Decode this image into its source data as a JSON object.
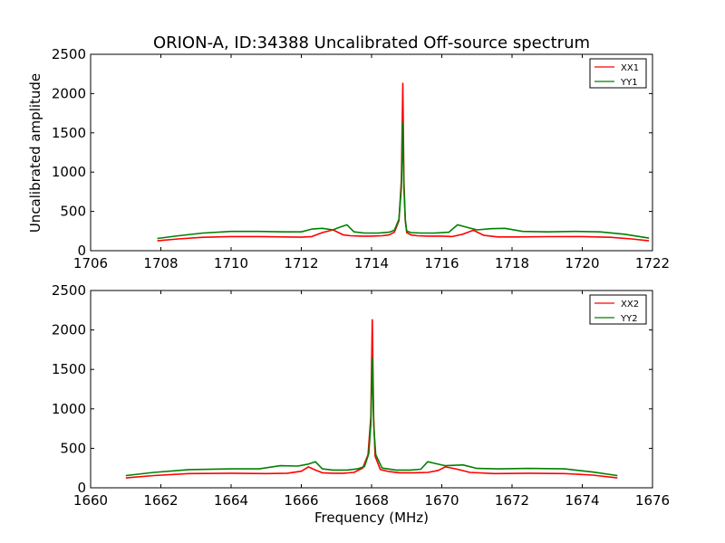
{
  "chart_data": [
    {
      "type": "line",
      "title": "ORION-A, ID:34388 Uncalibrated Off-source spectrum",
      "xlabel": "",
      "ylabel": "Uncalibrated amplitude",
      "xlim": [
        1706,
        1722
      ],
      "ylim": [
        0,
        2500
      ],
      "xticks": [
        "1706",
        "1708",
        "1710",
        "1712",
        "1714",
        "1716",
        "1718",
        "1720",
        "1722"
      ],
      "yticks": [
        "0",
        "500",
        "1000",
        "1500",
        "2000",
        "2500"
      ],
      "grid": false,
      "legend_position": "top-right",
      "series": [
        {
          "name": "XX1",
          "color": "#ff0000",
          "x": [
            1707.9,
            1708.5,
            1709.2,
            1710.0,
            1710.8,
            1711.5,
            1712.0,
            1712.3,
            1712.6,
            1712.9,
            1713.2,
            1713.4,
            1713.7,
            1714.0,
            1714.3,
            1714.5,
            1714.65,
            1714.78,
            1714.85,
            1714.89,
            1714.92,
            1714.96,
            1715.0,
            1715.12,
            1715.3,
            1715.6,
            1716.0,
            1716.3,
            1716.6,
            1716.9,
            1717.2,
            1717.6,
            1718.2,
            1719.0,
            1720.0,
            1720.8,
            1721.4,
            1721.9
          ],
          "y": [
            125,
            150,
            170,
            180,
            180,
            175,
            172,
            180,
            230,
            265,
            200,
            190,
            185,
            185,
            190,
            200,
            235,
            380,
            900,
            2130,
            900,
            380,
            230,
            200,
            190,
            185,
            185,
            180,
            210,
            260,
            195,
            175,
            175,
            178,
            180,
            170,
            150,
            125
          ]
        },
        {
          "name": "YY1",
          "color": "#008000",
          "x": [
            1707.9,
            1708.5,
            1709.2,
            1710.0,
            1710.8,
            1711.5,
            1712.0,
            1712.3,
            1712.6,
            1712.9,
            1713.1,
            1713.3,
            1713.5,
            1713.8,
            1714.2,
            1714.5,
            1714.65,
            1714.78,
            1714.85,
            1714.89,
            1714.92,
            1714.96,
            1715.0,
            1715.12,
            1715.4,
            1715.8,
            1716.2,
            1716.45,
            1716.7,
            1717.0,
            1717.4,
            1717.8,
            1718.3,
            1719.0,
            1719.8,
            1720.5,
            1721.2,
            1721.9
          ],
          "y": [
            155,
            190,
            225,
            245,
            245,
            240,
            240,
            275,
            285,
            265,
            300,
            330,
            240,
            225,
            225,
            235,
            260,
            400,
            800,
            1630,
            800,
            400,
            250,
            230,
            225,
            225,
            235,
            330,
            300,
            265,
            280,
            285,
            245,
            240,
            245,
            240,
            210,
            160
          ]
        }
      ]
    },
    {
      "type": "line",
      "title": "",
      "xlabel": "Frequency (MHz)",
      "ylabel": "",
      "xlim": [
        1660,
        1676
      ],
      "ylim": [
        0,
        2500
      ],
      "xticks": [
        "1660",
        "1662",
        "1664",
        "1666",
        "1668",
        "1670",
        "1672",
        "1674",
        "1676"
      ],
      "yticks": [
        "0",
        "500",
        "1000",
        "1500",
        "2000",
        "2500"
      ],
      "grid": false,
      "legend_position": "top-right",
      "series": [
        {
          "name": "XX2",
          "color": "#ff0000",
          "x": [
            1661.0,
            1661.8,
            1662.8,
            1664.0,
            1665.0,
            1665.6,
            1666.0,
            1666.2,
            1666.4,
            1666.6,
            1666.9,
            1667.2,
            1667.5,
            1667.75,
            1667.9,
            1667.98,
            1668.02,
            1668.06,
            1668.1,
            1668.25,
            1668.5,
            1668.8,
            1669.2,
            1669.6,
            1669.9,
            1670.1,
            1670.4,
            1670.8,
            1671.5,
            1672.5,
            1673.5,
            1674.3,
            1675.0
          ],
          "y": [
            125,
            155,
            180,
            185,
            180,
            185,
            210,
            265,
            225,
            190,
            185,
            185,
            195,
            250,
            420,
            900,
            2130,
            900,
            400,
            230,
            205,
            190,
            190,
            195,
            220,
            265,
            240,
            195,
            180,
            185,
            180,
            160,
            125
          ]
        },
        {
          "name": "YY2",
          "color": "#008000",
          "x": [
            1661.0,
            1661.8,
            1662.8,
            1664.0,
            1664.8,
            1665.4,
            1665.9,
            1666.2,
            1666.4,
            1666.6,
            1666.9,
            1667.3,
            1667.6,
            1667.8,
            1667.92,
            1667.98,
            1668.02,
            1668.06,
            1668.12,
            1668.3,
            1668.7,
            1669.1,
            1669.4,
            1669.6,
            1669.8,
            1670.1,
            1670.6,
            1671.0,
            1671.6,
            1672.5,
            1673.5,
            1674.3,
            1675.0
          ],
          "y": [
            155,
            195,
            230,
            240,
            240,
            280,
            275,
            300,
            330,
            240,
            225,
            225,
            240,
            270,
            430,
            800,
            1640,
            800,
            420,
            250,
            225,
            225,
            235,
            330,
            310,
            280,
            290,
            245,
            240,
            245,
            240,
            200,
            155
          ]
        }
      ]
    }
  ]
}
